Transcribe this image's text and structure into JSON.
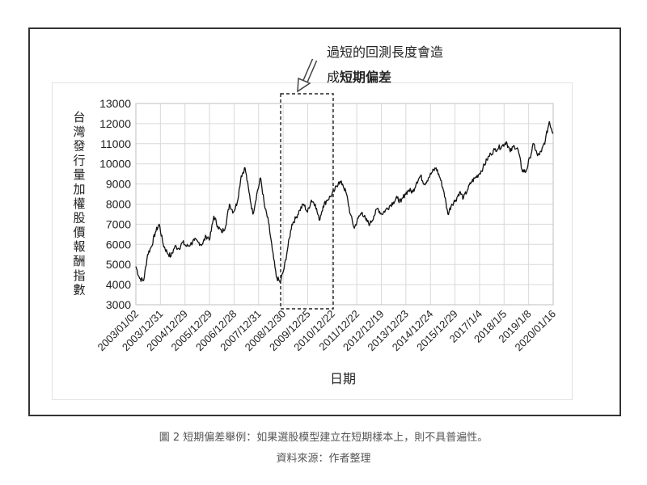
{
  "figure": {
    "caption": "圖 2 短期偏差舉例：如果選股模型建立在短期樣本上，則不具普遍性。",
    "source": "資料來源：作者整理"
  },
  "annotation": {
    "line1": "過短的回測長度會造",
    "line2_prefix": "成",
    "line2_bold": "短期偏差"
  },
  "chart_data": {
    "type": "line",
    "xlabel": "日期",
    "ylabel": "台灣發行量加權股價報酬指數",
    "ylim": [
      3000,
      13000
    ],
    "yticks": [
      3000,
      4000,
      5000,
      6000,
      7000,
      8000,
      9000,
      10000,
      11000,
      12000,
      13000
    ],
    "xtick_labels": [
      "2003/01/02",
      "2003/12/31",
      "2004/12/29",
      "2005/12/29",
      "2006/12/28",
      "2007/12/31",
      "2008/12/30",
      "2009/12/25",
      "2010/12/22",
      "2011/12/22",
      "2012/12/19",
      "2013/12/23",
      "2014/12/24",
      "2015/12/29",
      "2017/1/4",
      "2018/1/5",
      "2019/1/8",
      "2020/01/16"
    ],
    "series": [
      {
        "values": [
          4900,
          4300,
          4200,
          5500,
          5900,
          6600,
          7000,
          6000,
          5600,
          5400,
          5900,
          5800,
          6100,
          5900,
          6000,
          6200,
          6100,
          6000,
          6400,
          6300,
          7400,
          6900,
          6600,
          6900,
          8000,
          7600,
          8100,
          9400,
          9800,
          8600,
          7500,
          8500,
          9300,
          7900,
          7100,
          5700,
          4400,
          4100,
          4800,
          5900,
          7000,
          7300,
          7700,
          8000,
          7600,
          8200,
          8000,
          7200,
          7900,
          8200,
          8400,
          8700,
          9100,
          9000,
          8500,
          7500,
          6800,
          7300,
          7600,
          7200,
          7000,
          7400,
          7800,
          7500,
          7700,
          7900,
          8100,
          8300,
          8100,
          8500,
          8700,
          8600,
          9100,
          9400,
          9000,
          9300,
          9600,
          9800,
          9300,
          8600,
          7500,
          8000,
          8200,
          8600,
          8300,
          8700,
          9100,
          9300,
          9500,
          9800,
          10200,
          10500,
          10700,
          10800,
          10900,
          11100,
          10600,
          10900,
          10700,
          9700,
          9600,
          10300,
          11000,
          10400,
          10600,
          11200,
          12100,
          11500
        ]
      }
    ]
  }
}
